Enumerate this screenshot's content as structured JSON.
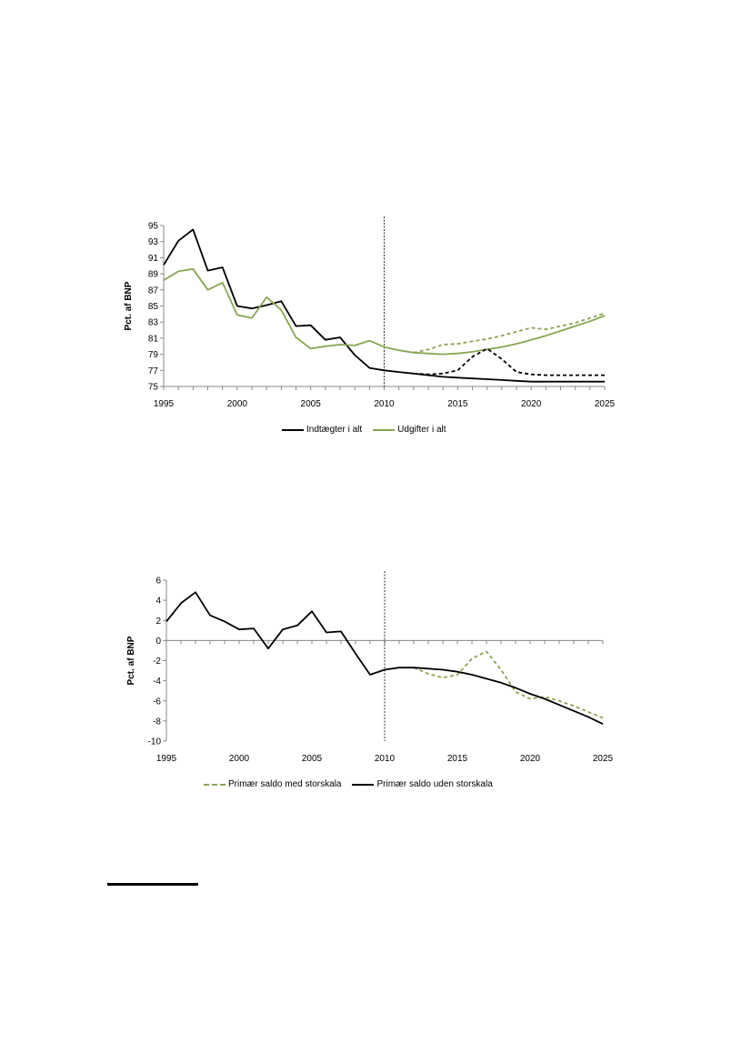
{
  "colors": {
    "black": "#000000",
    "green": "#8aa554"
  },
  "chart_data": [
    {
      "type": "line",
      "ylabel": "Pct. af BNP",
      "xlim": [
        1995,
        2025
      ],
      "ylim": [
        75,
        95
      ],
      "yticks": [
        75,
        77,
        79,
        81,
        83,
        85,
        87,
        89,
        91,
        93,
        95
      ],
      "xticks": [
        1995,
        2000,
        2005,
        2010,
        2015,
        2020,
        2025
      ],
      "vline": 2010,
      "legend_position": "bottom",
      "series": [
        {
          "name": "Indtægter i alt",
          "color": "#000000",
          "dash": "none",
          "legend": true,
          "x": [
            1995,
            1996,
            1997,
            1998,
            1999,
            2000,
            2001,
            2002,
            2003,
            2004,
            2005,
            2006,
            2007,
            2008,
            2009,
            2010,
            2011,
            2012,
            2013,
            2014,
            2015,
            2016,
            2017,
            2018,
            2019,
            2020,
            2021,
            2022,
            2023,
            2024,
            2025
          ],
          "y": [
            90.1,
            93.1,
            94.5,
            89.4,
            89.8,
            85.0,
            84.7,
            85.1,
            85.6,
            82.5,
            82.6,
            80.8,
            81.1,
            78.9,
            77.3,
            77.0,
            76.8,
            76.6,
            76.4,
            76.2,
            76.1,
            76.0,
            75.9,
            75.8,
            75.7,
            75.6,
            75.6,
            75.6,
            75.6,
            75.6,
            75.6
          ]
        },
        {
          "name": "Udgifter i alt",
          "color": "#8aa554",
          "dash": "none",
          "legend": true,
          "x": [
            1995,
            1996,
            1997,
            1998,
            1999,
            2000,
            2001,
            2002,
            2003,
            2004,
            2005,
            2006,
            2007,
            2008,
            2009,
            2010,
            2011,
            2012,
            2013,
            2014,
            2015,
            2016,
            2017,
            2018,
            2019,
            2020,
            2021,
            2022,
            2023,
            2024,
            2025
          ],
          "y": [
            88.2,
            89.3,
            89.6,
            87.0,
            87.9,
            83.9,
            83.5,
            86.1,
            84.5,
            81.1,
            79.7,
            80.0,
            80.2,
            80.1,
            80.7,
            79.9,
            79.5,
            79.2,
            79.1,
            79.0,
            79.1,
            79.3,
            79.6,
            79.9,
            80.3,
            80.8,
            81.3,
            81.9,
            82.5,
            83.1,
            83.8
          ]
        },
        {
          "name": "",
          "color": "#000000",
          "dash": "4,3",
          "legend": false,
          "x": [
            2012,
            2013,
            2014,
            2015,
            2016,
            2017,
            2018,
            2019,
            2020,
            2021,
            2022,
            2023,
            2024,
            2025
          ],
          "y": [
            76.6,
            76.5,
            76.6,
            77.0,
            78.7,
            79.7,
            78.4,
            76.8,
            76.5,
            76.4,
            76.4,
            76.4,
            76.4,
            76.4
          ]
        },
        {
          "name": "",
          "color": "#8aa554",
          "dash": "4,3",
          "legend": false,
          "x": [
            2012,
            2013,
            2014,
            2015,
            2016,
            2017,
            2018,
            2019,
            2020,
            2021,
            2022,
            2023,
            2024,
            2025
          ],
          "y": [
            79.2,
            79.6,
            80.2,
            80.3,
            80.6,
            80.9,
            81.3,
            81.8,
            82.3,
            82.1,
            82.5,
            82.9,
            83.5,
            84.1
          ]
        }
      ]
    },
    {
      "type": "line",
      "ylabel": "Pct. af BNP",
      "xlim": [
        1995,
        2025
      ],
      "ylim": [
        -10,
        6
      ],
      "yticks": [
        -10,
        -8,
        -6,
        -4,
        -2,
        0,
        2,
        4,
        6
      ],
      "xticks": [
        1995,
        2000,
        2005,
        2010,
        2015,
        2020,
        2025
      ],
      "vline": 2010,
      "legend_position": "bottom",
      "series": [
        {
          "name": "Primær saldo med storskala",
          "color": "#8aa554",
          "dash": "4,3",
          "legend": true,
          "x": [
            2012,
            2013,
            2014,
            2015,
            2016,
            2017,
            2018,
            2019,
            2020,
            2021,
            2022,
            2023,
            2024,
            2025
          ],
          "y": [
            -2.7,
            -3.3,
            -3.7,
            -3.4,
            -1.8,
            -1.1,
            -2.9,
            -5.1,
            -5.8,
            -5.6,
            -6.0,
            -6.5,
            -7.1,
            -7.7
          ]
        },
        {
          "name": "Primær saldo uden storskala",
          "color": "#000000",
          "dash": "none",
          "legend": true,
          "x": [
            1995,
            1996,
            1997,
            1998,
            1999,
            2000,
            2001,
            2002,
            2003,
            2004,
            2005,
            2006,
            2007,
            2008,
            2009,
            2010,
            2011,
            2012,
            2013,
            2014,
            2015,
            2016,
            2017,
            2018,
            2019,
            2020,
            2021,
            2022,
            2023,
            2024,
            2025
          ],
          "y": [
            1.9,
            3.7,
            4.8,
            2.5,
            1.9,
            1.1,
            1.2,
            -0.8,
            1.1,
            1.5,
            2.9,
            0.8,
            0.9,
            -1.3,
            -3.4,
            -2.9,
            -2.7,
            -2.7,
            -2.8,
            -2.9,
            -3.1,
            -3.4,
            -3.8,
            -4.2,
            -4.7,
            -5.3,
            -5.8,
            -6.4,
            -7.0,
            -7.6,
            -8.3
          ]
        }
      ]
    }
  ]
}
